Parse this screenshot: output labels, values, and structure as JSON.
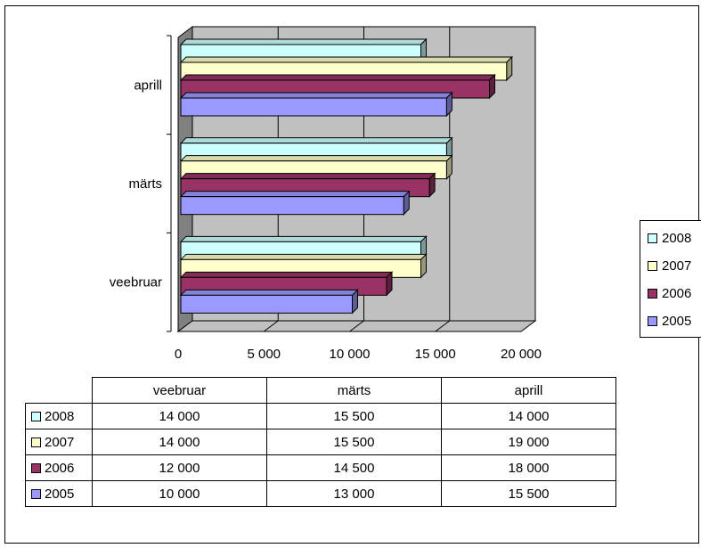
{
  "chart_data": {
    "type": "bar",
    "orientation": "horizontal",
    "categories": [
      "veebruar",
      "märts",
      "aprill"
    ],
    "series": [
      {
        "name": "2008",
        "values": [
          14000,
          15500,
          14000
        ],
        "color": "#CCFFFF"
      },
      {
        "name": "2007",
        "values": [
          14000,
          15500,
          19000
        ],
        "color": "#FFFFCC"
      },
      {
        "name": "2006",
        "values": [
          12000,
          14500,
          18000
        ],
        "color": "#993366"
      },
      {
        "name": "2005",
        "values": [
          10000,
          13000,
          15500
        ],
        "color": "#9999FF"
      }
    ],
    "xlim": [
      0,
      20000
    ],
    "x_ticks": [
      "0",
      "5 000",
      "10 000",
      "15 000",
      "20 000"
    ],
    "grid": true,
    "legend_position": "right",
    "three_d": true,
    "wall_color": "#C0C0C0",
    "floor_color": "#808080"
  },
  "table": {
    "columns": [
      "veebruar",
      "märts",
      "aprill"
    ],
    "rows": [
      {
        "label": "2008",
        "color": "#CCFFFF",
        "values": [
          "14 000",
          "15 500",
          "14 000"
        ]
      },
      {
        "label": "2007",
        "color": "#FFFFCC",
        "values": [
          "14 000",
          "15 500",
          "19 000"
        ]
      },
      {
        "label": "2006",
        "color": "#993366",
        "values": [
          "12 000",
          "14 500",
          "18 000"
        ]
      },
      {
        "label": "2005",
        "color": "#9999FF",
        "values": [
          "10 000",
          "13 000",
          "15 500"
        ]
      }
    ]
  }
}
